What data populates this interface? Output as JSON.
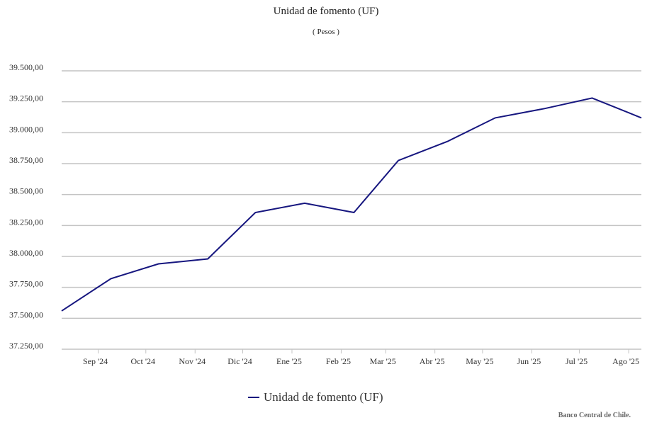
{
  "chart_data": {
    "type": "line",
    "title": "Unidad de fomento (UF)",
    "subtitle": "( Pesos )",
    "xlabel": "",
    "ylabel": "",
    "ylim": [
      37250,
      39500
    ],
    "y_ticks": [
      37250,
      37500,
      37750,
      38000,
      38250,
      38500,
      38750,
      39000,
      39250,
      39500
    ],
    "y_tick_labels": [
      "37.250,00",
      "37.500,00",
      "37.750,00",
      "38.000,00",
      "38.250,00",
      "38.500,00",
      "38.750,00",
      "39.000,00",
      "39.250,00",
      "39.500,00"
    ],
    "x_tick_labels": [
      "Sep '24",
      "Oct '24",
      "Nov '24",
      "Dic '24",
      "Ene '25",
      "Feb '25",
      "Mar '25",
      "Abr '25",
      "May '25",
      "Jun '25",
      "Jul '25",
      "Ago '25"
    ],
    "grid": true,
    "legend_position": "bottom",
    "series": [
      {
        "name": "Unidad de fomento (UF)",
        "color": "#16167f",
        "points": [
          {
            "x": "2024-08-09",
            "y": 37560
          },
          {
            "x": "2024-09-09",
            "y": 37820
          },
          {
            "x": "2024-10-09",
            "y": 37940
          },
          {
            "x": "2024-11-09",
            "y": 37980
          },
          {
            "x": "2024-12-09",
            "y": 38355
          },
          {
            "x": "2025-01-09",
            "y": 38430
          },
          {
            "x": "2025-02-09",
            "y": 38355
          },
          {
            "x": "2025-03-09",
            "y": 38775
          },
          {
            "x": "2025-04-09",
            "y": 38930
          },
          {
            "x": "2025-05-09",
            "y": 39120
          },
          {
            "x": "2025-06-09",
            "y": 39195
          },
          {
            "x": "2025-07-09",
            "y": 39280
          },
          {
            "x": "2025-08-09",
            "y": 39120
          }
        ]
      }
    ]
  },
  "legend": {
    "label": "Unidad de fomento (UF)"
  },
  "credit": "Banco Central de Chile."
}
